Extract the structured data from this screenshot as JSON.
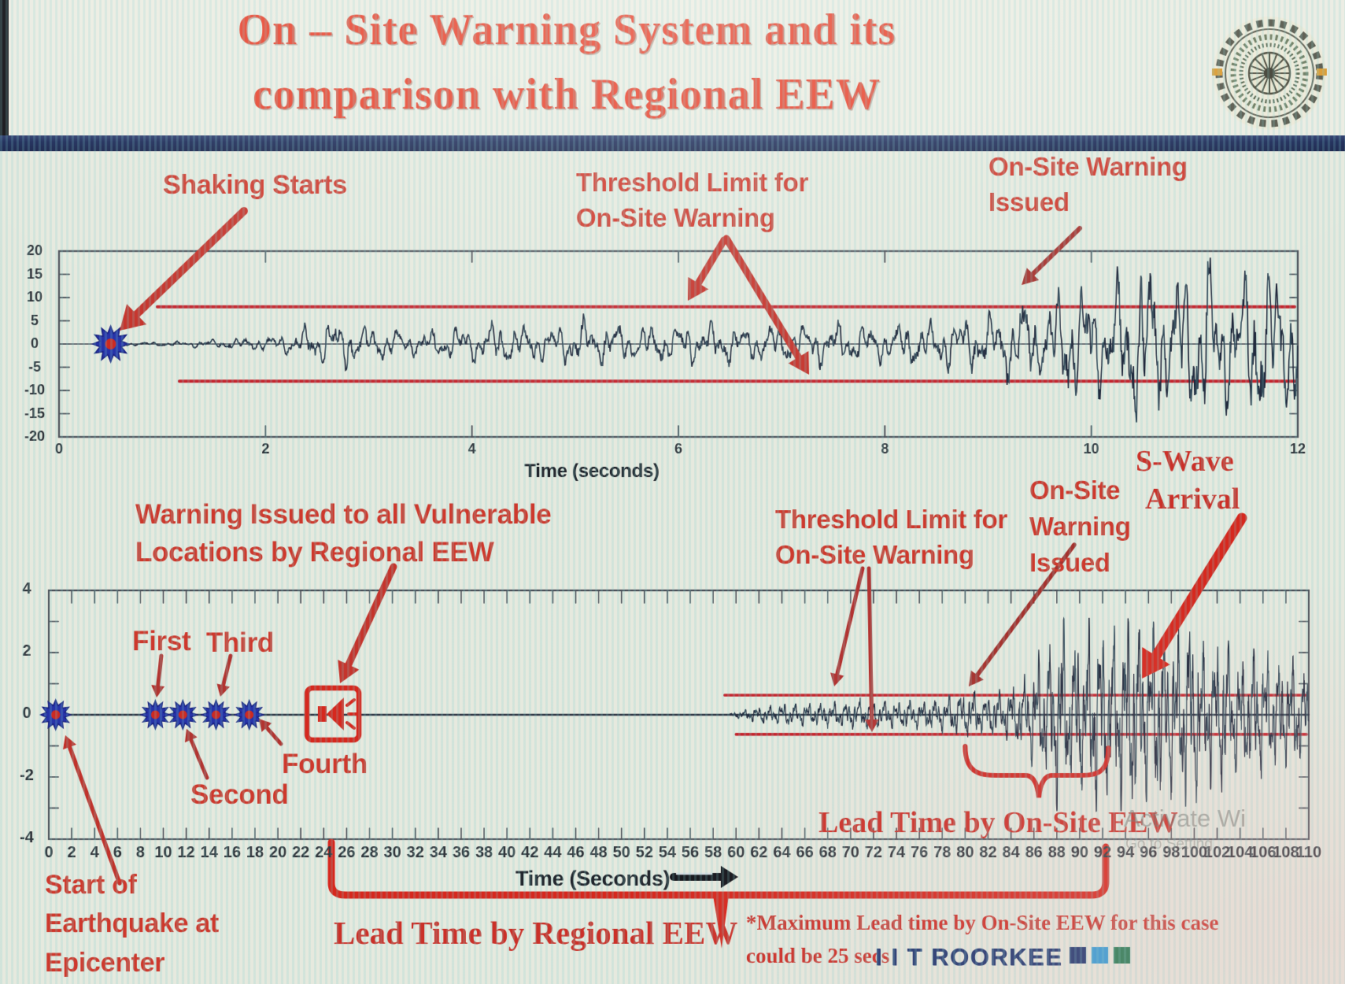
{
  "header": {
    "title_line1": "On – Site Warning System and its",
    "title_line2": "comparison with Regional EEW",
    "logo": "iit-roorkee-emblem"
  },
  "colors": {
    "title_red": "#e6402b",
    "annotation_red": "#ce382c",
    "arrow_red": "#c5342c",
    "threshold_line_red": "#c4252e",
    "waveform_navy": "#222c3f",
    "divider_navy": "#1b2a58",
    "brand_navy": "#1b356f",
    "marker_blue": "#2733a8",
    "marker_center_red": "#cc2a22"
  },
  "top_chart_labels": {
    "shaking_starts": "Shaking Starts",
    "threshold_l1": "Threshold Limit for",
    "threshold_l2": "On-Site Warning",
    "warning_issued_l1": "On-Site Warning",
    "warning_issued_l2": "Issued",
    "xlabel": "Time (seconds)"
  },
  "bottom_chart_labels": {
    "regional_warning_l1": "Warning Issued to all Vulnerable",
    "regional_warning_l2": "Locations by Regional EEW",
    "first": "First",
    "second": "Second",
    "third": "Third",
    "fourth": "Fourth",
    "threshold_l1": "Threshold Limit for",
    "threshold_l2": "On-Site Warning",
    "onsite_l1": "On-Site",
    "onsite_l2": "Warning",
    "onsite_l3": "Issued",
    "swave_l1": "S-Wave",
    "swave_l2": "Arrival",
    "lead_onsite": "Lead Time by On-Site EEW",
    "xlabel": "Time (Seconds)",
    "start_l1": "Start of",
    "start_l2": "Earthquake at",
    "start_l3": "Epicenter",
    "lead_regional": "Lead Time by Regional EEW",
    "maxnote_l1": "*Maximum Lead time by On-Site EEW for this case",
    "maxnote_l2": "could be 25 secs"
  },
  "footer": {
    "brand": "I I T ROORKEE",
    "square_colors": [
      "#1b356f",
      "#2f9bd6",
      "#217a52"
    ],
    "watermark_line1": "Activate Wi",
    "watermark_line2": "Go to Setting"
  },
  "chart_data": [
    {
      "id": "onsite-warning-seismogram",
      "type": "line",
      "title": "",
      "xlabel": "Time (seconds)",
      "ylabel": "",
      "xlim": [
        0,
        12
      ],
      "ylim": [
        -20,
        20
      ],
      "xticks": [
        0,
        2,
        4,
        6,
        8,
        10,
        12
      ],
      "yticks": [
        20,
        15,
        10,
        5,
        0,
        -5,
        -10,
        -15,
        -20
      ],
      "grid": false,
      "threshold_upper": 8,
      "threshold_lower": -8,
      "events": {
        "shaking_starts_time": 0.5,
        "onsite_warning_issued_time": 9.3
      },
      "annotations": [
        "Shaking Starts",
        "Threshold Limit for On-Site Warning",
        "On-Site Warning Issued"
      ],
      "series": [
        {
          "name": "ground motion",
          "amplitude_envelope": [
            [
              0.5,
              0.25
            ],
            [
              0.9,
              0.35
            ],
            [
              1.2,
              0.5
            ],
            [
              1.6,
              0.9
            ],
            [
              2.0,
              1.3
            ],
            [
              2.3,
              2.2
            ],
            [
              2.5,
              4.3
            ],
            [
              2.8,
              4.6
            ],
            [
              3.1,
              3.0
            ],
            [
              3.5,
              2.2
            ],
            [
              3.9,
              3.0
            ],
            [
              4.3,
              4.0
            ],
            [
              4.7,
              3.2
            ],
            [
              5.1,
              4.4
            ],
            [
              5.5,
              3.2
            ],
            [
              5.9,
              3.6
            ],
            [
              6.3,
              4.4
            ],
            [
              6.7,
              3.3
            ],
            [
              7.1,
              3.7
            ],
            [
              7.5,
              4.1
            ],
            [
              7.9,
              3.3
            ],
            [
              8.3,
              4.1
            ],
            [
              8.7,
              4.7
            ],
            [
              9.0,
              5.3
            ],
            [
              9.2,
              7.2
            ],
            [
              9.35,
              8.8
            ],
            [
              9.5,
              6.2
            ],
            [
              9.7,
              9.8
            ],
            [
              9.9,
              12.8
            ],
            [
              10.1,
              8.2
            ],
            [
              10.35,
              13.5
            ],
            [
              10.55,
              16.8
            ],
            [
              10.75,
              10.5
            ],
            [
              10.95,
              14.8
            ],
            [
              11.15,
              16.2
            ],
            [
              11.35,
              11.2
            ],
            [
              11.55,
              14.2
            ],
            [
              11.75,
              16.0
            ],
            [
              11.95,
              13.0
            ],
            [
              12,
              12.0
            ]
          ]
        }
      ]
    },
    {
      "id": "regional-vs-onsite-eew-timeline",
      "type": "line",
      "title": "",
      "xlabel": "Time (Seconds)",
      "ylabel": "",
      "xlim": [
        0,
        110
      ],
      "ylim": [
        -4,
        4
      ],
      "xticks": [
        0,
        2,
        4,
        6,
        8,
        10,
        12,
        14,
        16,
        18,
        20,
        22,
        24,
        26,
        28,
        30,
        32,
        34,
        36,
        38,
        40,
        42,
        44,
        46,
        48,
        50,
        52,
        54,
        56,
        58,
        60,
        62,
        64,
        66,
        68,
        70,
        72,
        74,
        76,
        78,
        80,
        82,
        84,
        86,
        88,
        90,
        92,
        94,
        96,
        98,
        100,
        102,
        104,
        106,
        108,
        110
      ],
      "yticks": [
        4,
        2,
        0,
        -2,
        -4
      ],
      "grid": false,
      "threshold_upper": 0.63,
      "threshold_lower": -0.63,
      "events": {
        "earthquake_start_time": 0.6,
        "regional_warning_reports": [
          {
            "label": "First",
            "time": 9.3
          },
          {
            "label": "Second",
            "time": 11.7
          },
          {
            "label": "Third",
            "time": 14.6
          },
          {
            "label": "Fourth",
            "time": 17.5
          }
        ],
        "regional_eew_warning_issued_time": 24.5,
        "signal_onset_time": 60,
        "onsite_warning_issued_time": 80,
        "s_wave_arrival_time": 93.5
      },
      "lead_time_by_regional_eew_span": [
        24.5,
        93
      ],
      "lead_time_by_onsite_eew_span": [
        80,
        92.5
      ],
      "note": "*Maximum Lead time by On-Site EEW for this case could be 25 secs",
      "annotations": [
        "Warning Issued to all Vulnerable Locations by Regional EEW",
        "First",
        "Second",
        "Third",
        "Fourth",
        "Threshold Limit for On-Site Warning",
        "On-Site Warning Issued",
        "S-Wave Arrival",
        "Lead Time by On-Site EEW",
        "Lead Time by Regional EEW",
        "Start of Earthquake at Epicenter"
      ],
      "series": [
        {
          "name": "ground motion at site",
          "amplitude_envelope": [
            [
              59.5,
              0.04
            ],
            [
              60.5,
              0.12
            ],
            [
              61.5,
              0.2
            ],
            [
              63,
              0.26
            ],
            [
              65,
              0.33
            ],
            [
              67,
              0.3
            ],
            [
              69,
              0.36
            ],
            [
              71,
              0.4
            ],
            [
              73,
              0.35
            ],
            [
              75,
              0.4
            ],
            [
              77,
              0.42
            ],
            [
              78.5,
              0.5
            ],
            [
              79.5,
              0.62
            ],
            [
              80.5,
              0.68
            ],
            [
              81.5,
              0.52
            ],
            [
              82.5,
              0.56
            ],
            [
              83.5,
              0.62
            ],
            [
              84.5,
              0.85
            ],
            [
              85.5,
              1.2
            ],
            [
              86.5,
              1.6
            ],
            [
              87.5,
              2.1
            ],
            [
              88.5,
              2.65
            ],
            [
              89.5,
              1.9
            ],
            [
              90.5,
              2.35
            ],
            [
              91.5,
              2.7
            ],
            [
              92.5,
              2.1
            ],
            [
              93.5,
              2.5
            ],
            [
              94.5,
              2.85
            ],
            [
              95.5,
              2.3
            ],
            [
              96.5,
              2.55
            ],
            [
              97.5,
              2.0
            ],
            [
              98.5,
              2.35
            ],
            [
              99.5,
              2.6
            ],
            [
              100.5,
              2.1
            ],
            [
              101.5,
              1.8
            ],
            [
              102.5,
              2.15
            ],
            [
              103.5,
              1.85
            ],
            [
              104.5,
              1.6
            ],
            [
              105.5,
              1.85
            ],
            [
              106.5,
              1.65
            ],
            [
              107.5,
              1.4
            ],
            [
              108.5,
              1.55
            ],
            [
              109.5,
              1.25
            ],
            [
              110,
              1.15
            ]
          ]
        }
      ]
    }
  ]
}
